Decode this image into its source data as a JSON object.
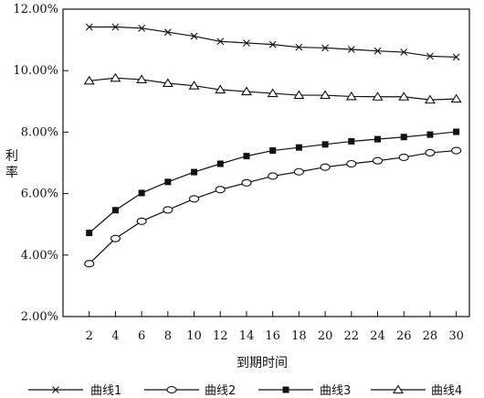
{
  "chart_data": {
    "type": "line",
    "xlabel": "到期时间",
    "ylabel": "利率",
    "x": [
      2,
      4,
      6,
      8,
      10,
      12,
      14,
      16,
      18,
      20,
      22,
      24,
      26,
      28,
      30
    ],
    "xlim": [
      0,
      31
    ],
    "ylim": [
      2,
      12
    ],
    "y_ticks": [
      "2.00%",
      "4.00%",
      "6.00%",
      "8.00%",
      "10.00%",
      "12.00%"
    ],
    "x_ticks": [
      "2",
      "4",
      "6",
      "8",
      "10",
      "12",
      "14",
      "16",
      "18",
      "20",
      "22",
      "24",
      "26",
      "28",
      "30"
    ],
    "grid": false,
    "legend_position": "bottom",
    "series": [
      {
        "name": "曲线1",
        "marker": "x",
        "values": [
          11.42,
          11.42,
          11.38,
          11.25,
          11.12,
          10.95,
          10.9,
          10.85,
          10.76,
          10.74,
          10.69,
          10.64,
          10.6,
          10.47,
          10.44
        ]
      },
      {
        "name": "曲线2",
        "marker": "circle",
        "values": [
          3.72,
          4.54,
          5.1,
          5.47,
          5.83,
          6.13,
          6.35,
          6.57,
          6.71,
          6.86,
          6.97,
          7.07,
          7.18,
          7.33,
          7.4
        ]
      },
      {
        "name": "曲线3",
        "marker": "square",
        "values": [
          4.72,
          5.46,
          6.02,
          6.38,
          6.7,
          6.97,
          7.22,
          7.4,
          7.5,
          7.6,
          7.7,
          7.77,
          7.84,
          7.92,
          8.01
        ]
      },
      {
        "name": "曲线4",
        "marker": "triangle",
        "values": [
          9.67,
          9.76,
          9.71,
          9.59,
          9.51,
          9.38,
          9.32,
          9.26,
          9.2,
          9.2,
          9.16,
          9.15,
          9.15,
          9.05,
          9.08
        ]
      }
    ]
  },
  "colors": {
    "ink": "#111111",
    "background": "#ffffff"
  }
}
